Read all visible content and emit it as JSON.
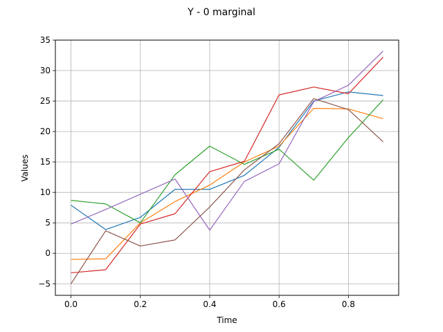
{
  "chart_data": {
    "type": "line",
    "title": "Y - 0 marginal",
    "xlabel": "Time",
    "ylabel": "Values",
    "xlim": [
      -0.045,
      0.945
    ],
    "ylim": [
      -6.9,
      35.0
    ],
    "grid": true,
    "x": [
      0.0,
      0.1,
      0.2,
      0.3,
      0.4,
      0.5,
      0.6,
      0.7,
      0.8,
      0.9
    ],
    "xticks": [
      0.0,
      0.2,
      0.4,
      0.6,
      0.8
    ],
    "xtick_labels": [
      "0.0",
      "0.2",
      "0.4",
      "0.6",
      "0.8"
    ],
    "yticks": [
      -5,
      0,
      5,
      10,
      15,
      20,
      25,
      30,
      35
    ],
    "ytick_labels": [
      "−5",
      "0",
      "5",
      "10",
      "15",
      "20",
      "25",
      "30",
      "35"
    ],
    "series": [
      {
        "color": "#1f77b4",
        "values": [
          7.9,
          3.9,
          5.9,
          10.5,
          10.5,
          12.8,
          17.4,
          25.0,
          26.5,
          25.9
        ]
      },
      {
        "color": "#ff7f0e",
        "values": [
          -1.0,
          -0.9,
          5.0,
          8.5,
          11.2,
          15.0,
          17.6,
          23.8,
          23.7,
          22.1
        ]
      },
      {
        "color": "#2ca02c",
        "values": [
          8.7,
          8.1,
          5.0,
          12.9,
          17.6,
          14.6,
          17.1,
          12.0,
          19.0,
          25.2
        ]
      },
      {
        "color": "#d62728",
        "values": [
          -3.2,
          -2.7,
          4.8,
          6.5,
          13.4,
          15.1,
          26.0,
          27.3,
          26.2,
          32.2
        ]
      },
      {
        "color": "#9467bd",
        "values": [
          4.8,
          7.2,
          9.7,
          12.2,
          3.8,
          11.8,
          14.7,
          24.9,
          27.6,
          33.2
        ]
      },
      {
        "color": "#8c564b",
        "values": [
          -5.0,
          3.7,
          1.2,
          2.2,
          7.6,
          13.7,
          18.0,
          25.4,
          23.6,
          18.3
        ]
      }
    ]
  }
}
